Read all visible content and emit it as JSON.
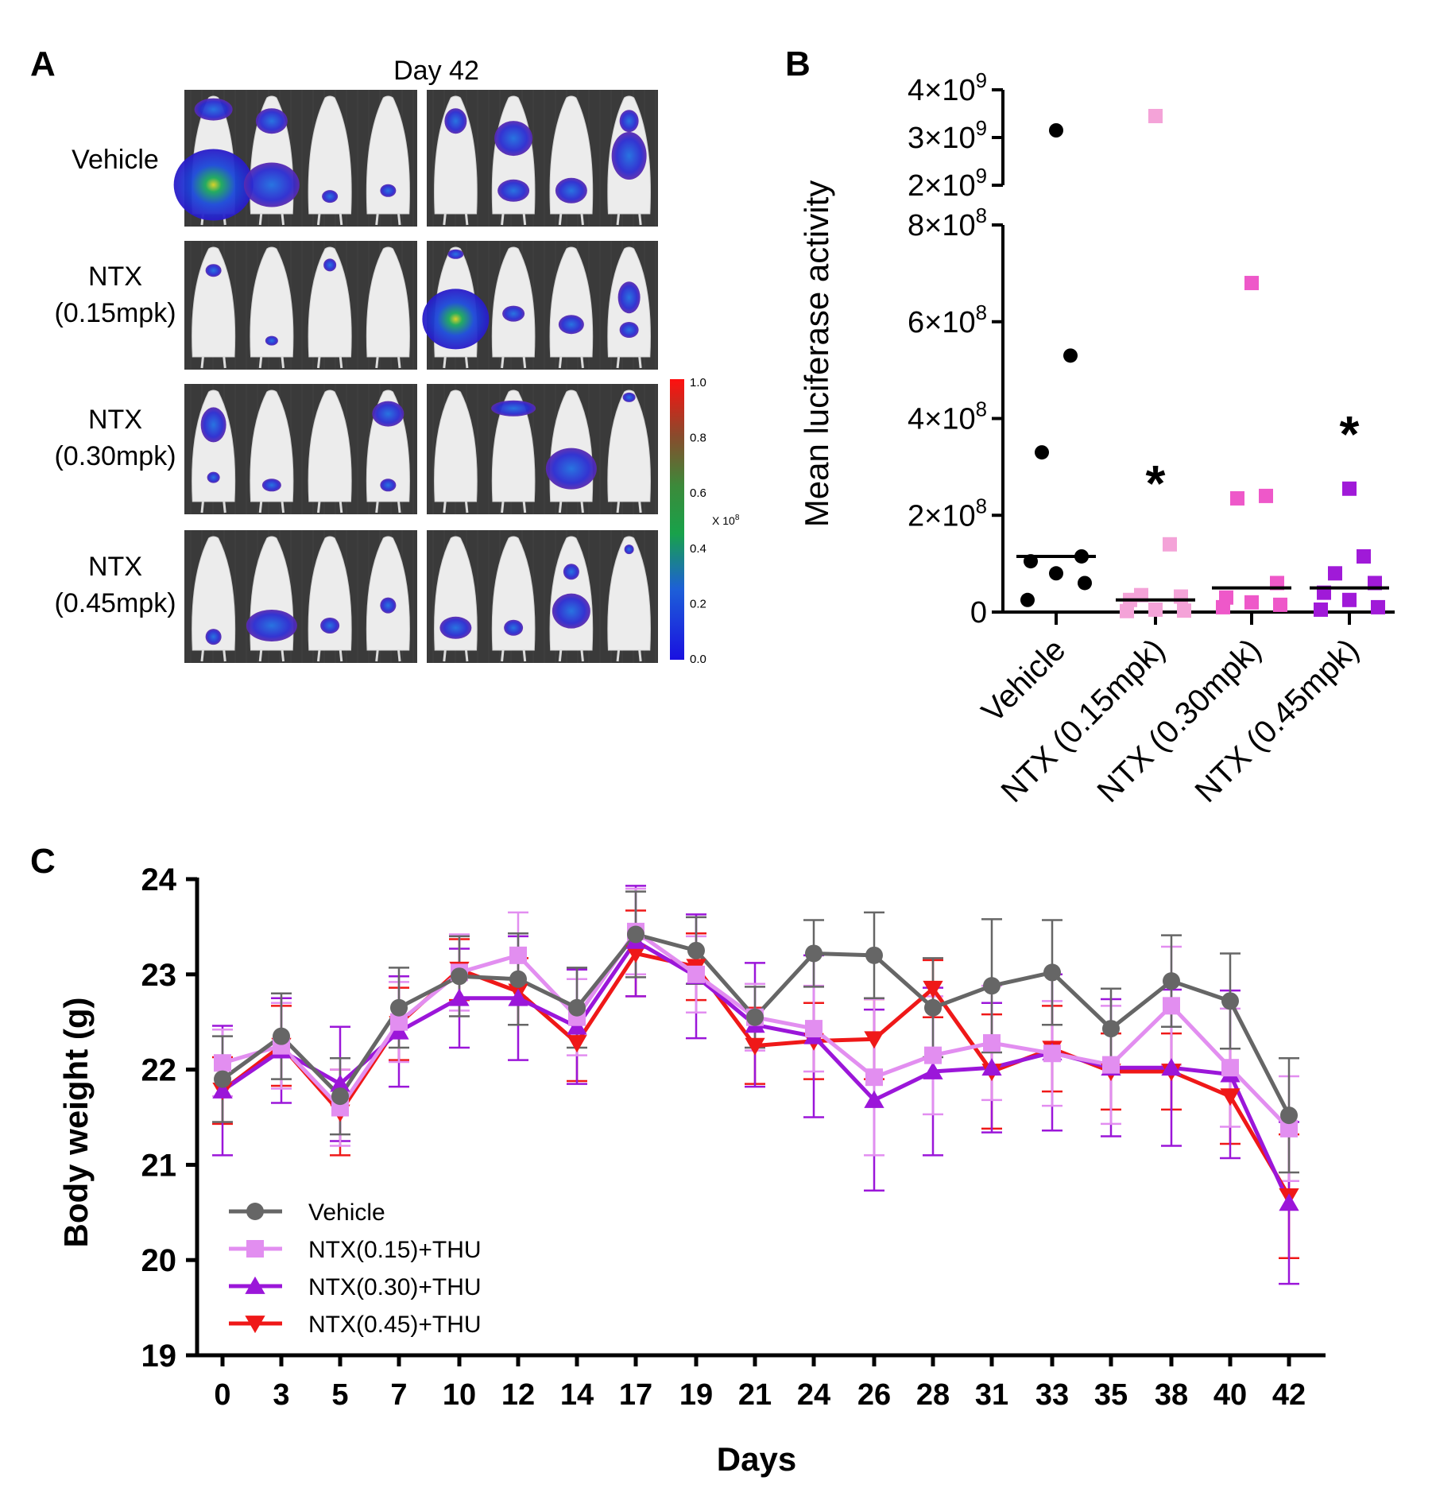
{
  "colors": {
    "vehicle": "#000000",
    "ntx015": "#f4a3d8",
    "ntx030": "#ee58c9",
    "ntx045": "#a01ad8",
    "line_vehicle": "#666666",
    "line_ntx015": "#e28ef0",
    "line_ntx030": "#9b16d9",
    "line_ntx045": "#ef1818"
  },
  "panel_a": {
    "letter": "A",
    "title": "Day 42",
    "row_labels": [
      [
        "Vehicle"
      ],
      [
        "NTX",
        "(0.15mpk)"
      ],
      [
        "NTX",
        "(0.30mpk)"
      ],
      [
        "NTX",
        "(0.45mpk)"
      ]
    ],
    "colorbar": {
      "ticks": [
        "1.0",
        "0.8",
        "0.6",
        "0.4",
        "0.2",
        "0.0"
      ],
      "unit": "X 10",
      "unit_exp": "8"
    }
  },
  "chart_data": [
    {
      "panel": "B",
      "type": "scatter",
      "ylabel": "Mean luciferase activity",
      "categories": [
        "Vehicle",
        "NTX (0.15mpk)",
        "NTX (0.30mpk)",
        "NTX (0.45mpk)"
      ],
      "y_ticks_lower": [
        {
          "value": 0,
          "base": "0",
          "exp": ""
        },
        {
          "value": 200000000,
          "base": "2×10",
          "exp": "8"
        },
        {
          "value": 400000000,
          "base": "4×10",
          "exp": "8"
        },
        {
          "value": 600000000,
          "base": "6×10",
          "exp": "8"
        },
        {
          "value": 800000000,
          "base": "8×10",
          "exp": "8"
        }
      ],
      "y_ticks_upper": [
        {
          "value": 2000000000,
          "base": "2×10",
          "exp": "9"
        },
        {
          "value": 3000000000,
          "base": "3×10",
          "exp": "9"
        },
        {
          "value": 4000000000,
          "base": "4×10",
          "exp": "9"
        }
      ],
      "y_break": [
        800000000,
        2000000000
      ],
      "series": [
        {
          "name": "Vehicle",
          "marker": "circle",
          "median": 115000000,
          "values": [
            3150000000,
            530000000,
            330000000,
            115000000,
            105000000,
            80000000,
            60000000,
            25000000
          ]
        },
        {
          "name": "NTX (0.15mpk)",
          "marker": "square",
          "median": 25000000,
          "values": [
            3450000000,
            140000000,
            35000000,
            32000000,
            25000000,
            5000000,
            3000000,
            2000000
          ]
        },
        {
          "name": "NTX (0.30mpk)",
          "marker": "square",
          "median": 50000000,
          "values": [
            680000000,
            240000000,
            235000000,
            60000000,
            30000000,
            20000000,
            15000000,
            10000000
          ]
        },
        {
          "name": "NTX (0.45mpk)",
          "marker": "square",
          "median": 50000000,
          "values": [
            255000000,
            115000000,
            80000000,
            60000000,
            40000000,
            25000000,
            10000000,
            5000000
          ]
        }
      ],
      "annotations": [
        {
          "category": "NTX (0.15mpk)",
          "text": "*"
        },
        {
          "category": "NTX (0.45mpk)",
          "text": "*"
        }
      ]
    },
    {
      "panel": "C",
      "type": "line",
      "xlabel": "Days",
      "ylabel": "Body weight (g)",
      "ylim": [
        19,
        24
      ],
      "y_ticks": [
        "19",
        "20",
        "21",
        "22",
        "23",
        "24"
      ],
      "x": [
        "0",
        "3",
        "5",
        "7",
        "10",
        "12",
        "14",
        "17",
        "19",
        "21",
        "24",
        "26",
        "28",
        "31",
        "33",
        "35",
        "38",
        "40",
        "42"
      ],
      "legend_position": "bottom-left",
      "series": [
        {
          "name": "Vehicle",
          "marker": "circle",
          "values": [
            21.9,
            22.35,
            21.72,
            22.65,
            22.98,
            22.95,
            22.65,
            23.42,
            23.25,
            22.55,
            23.22,
            23.2,
            22.65,
            22.88,
            23.02,
            22.43,
            22.93,
            22.72,
            21.52
          ],
          "errors": [
            0.45,
            0.45,
            0.4,
            0.42,
            0.42,
            0.48,
            0.42,
            0.45,
            0.35,
            0.32,
            0.35,
            0.45,
            0.52,
            0.7,
            0.55,
            0.42,
            0.48,
            0.5,
            0.6
          ]
        },
        {
          "name": "NTX(0.15)+THU",
          "marker": "square",
          "values": [
            22.07,
            22.25,
            21.6,
            22.5,
            23.02,
            23.2,
            22.55,
            23.45,
            23.0,
            22.55,
            22.43,
            21.92,
            22.15,
            22.28,
            22.17,
            22.05,
            22.67,
            22.02,
            21.38
          ],
          "errors": [
            0.35,
            0.45,
            0.4,
            0.42,
            0.4,
            0.45,
            0.4,
            0.45,
            0.4,
            0.35,
            0.45,
            0.82,
            0.62,
            0.6,
            0.55,
            0.62,
            0.62,
            0.62,
            0.55
          ]
        },
        {
          "name": "NTX(0.30)+THU",
          "marker": "triangle-up",
          "values": [
            21.78,
            22.2,
            21.85,
            22.4,
            22.75,
            22.75,
            22.45,
            23.35,
            22.98,
            22.47,
            22.35,
            21.68,
            21.98,
            22.02,
            22.18,
            22.02,
            22.02,
            21.95,
            20.6
          ],
          "errors": [
            0.68,
            0.55,
            0.6,
            0.58,
            0.52,
            0.65,
            0.6,
            0.58,
            0.65,
            0.65,
            0.85,
            0.95,
            0.88,
            0.68,
            0.82,
            0.72,
            0.82,
            0.88,
            0.85
          ]
        },
        {
          "name": "NTX(0.45)+THU",
          "marker": "triangle-down",
          "values": [
            21.78,
            22.25,
            21.55,
            22.48,
            23.05,
            22.82,
            22.28,
            23.22,
            23.08,
            22.25,
            22.3,
            22.32,
            22.85,
            21.98,
            22.22,
            21.98,
            21.98,
            21.72,
            20.67
          ],
          "errors": [
            0.35,
            0.42,
            0.45,
            0.38,
            0.32,
            0.35,
            0.4,
            0.45,
            0.35,
            0.4,
            0.4,
            0.42,
            0.3,
            0.6,
            0.45,
            0.4,
            0.4,
            0.5,
            0.65
          ]
        }
      ]
    }
  ]
}
